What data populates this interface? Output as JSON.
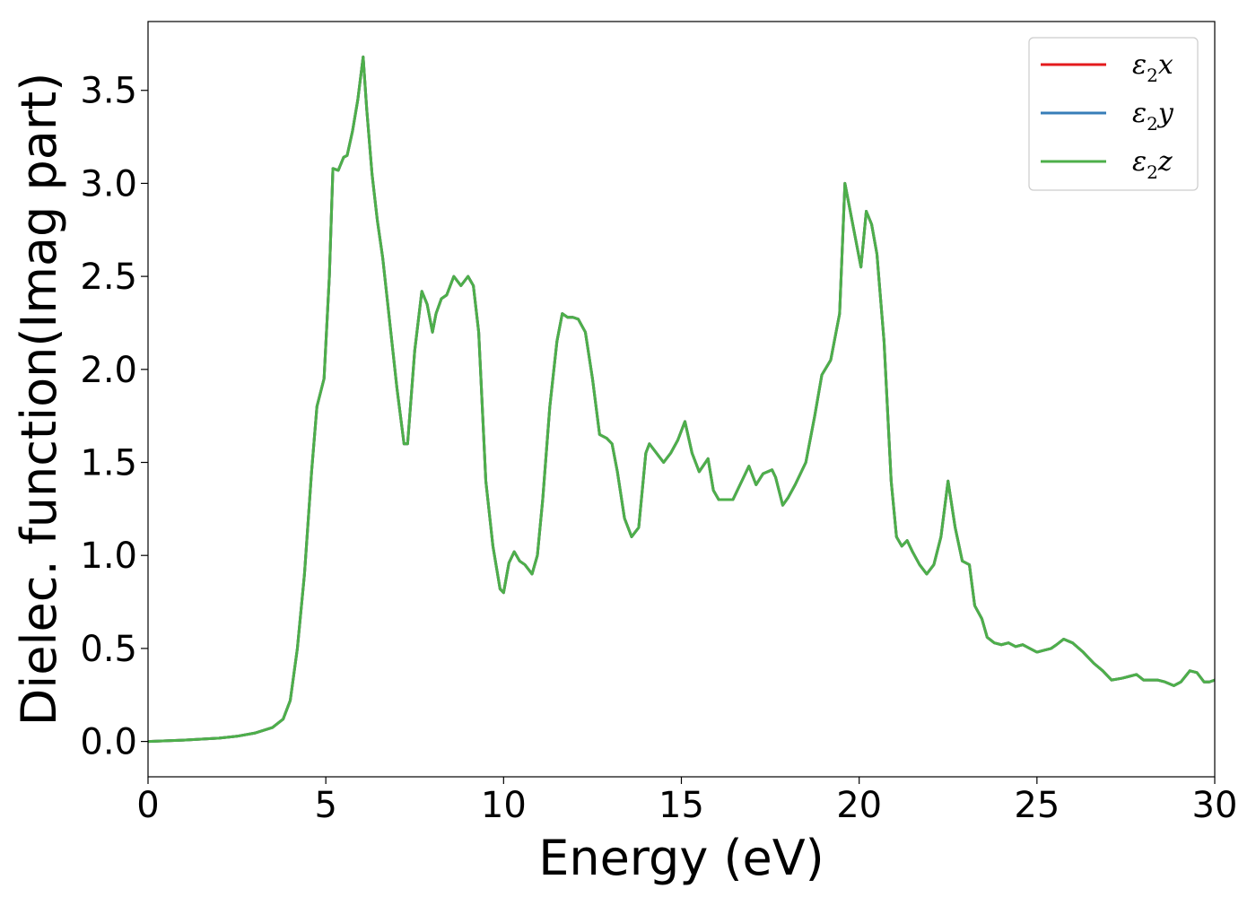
{
  "chart_data": {
    "type": "line",
    "title": "",
    "xlabel": "Energy (eV)",
    "ylabel": "Dielec. function(Imag part)",
    "xlim": [
      0,
      30
    ],
    "ylim": [
      -0.19,
      3.87
    ],
    "xticks": [
      0,
      5,
      10,
      15,
      20,
      25,
      30
    ],
    "xtick_labels": [
      "0",
      "5",
      "10",
      "15",
      "20",
      "25",
      "30"
    ],
    "yticks": [
      0.0,
      0.5,
      1.0,
      1.5,
      2.0,
      2.5,
      3.0,
      3.5
    ],
    "ytick_labels": [
      "0.0",
      "0.5",
      "1.0",
      "1.5",
      "2.0",
      "2.5",
      "3.0",
      "3.5"
    ],
    "grid": false,
    "legend_position": "top-right",
    "series": [
      {
        "name": "ε₂x",
        "color": "#e41a1c",
        "legend": {
          "base": "ε",
          "sub": "2",
          "var": "x"
        }
      },
      {
        "name": "ε₂y",
        "color": "#377eb8",
        "legend": {
          "base": "ε",
          "sub": "2",
          "var": "y"
        }
      },
      {
        "name": "ε₂z",
        "color": "#4daf4a",
        "legend": {
          "base": "ε",
          "sub": "2",
          "var": "z"
        }
      }
    ],
    "x": [
      0,
      1,
      2,
      2.5,
      3,
      3.5,
      3.8,
      4.0,
      4.2,
      4.4,
      4.6,
      4.75,
      4.95,
      5.1,
      5.2,
      5.35,
      5.5,
      5.6,
      5.75,
      5.9,
      6.05,
      6.15,
      6.3,
      6.45,
      6.6,
      6.8,
      7.0,
      7.2,
      7.3,
      7.5,
      7.7,
      7.85,
      8.0,
      8.1,
      8.25,
      8.4,
      8.6,
      8.8,
      9.0,
      9.15,
      9.3,
      9.5,
      9.7,
      9.9,
      10.0,
      10.15,
      10.3,
      10.45,
      10.6,
      10.8,
      10.95,
      11.1,
      11.3,
      11.5,
      11.65,
      11.8,
      11.95,
      12.1,
      12.3,
      12.5,
      12.7,
      12.9,
      13.05,
      13.2,
      13.4,
      13.6,
      13.8,
      14.0,
      14.1,
      14.3,
      14.5,
      14.7,
      14.9,
      15.1,
      15.3,
      15.5,
      15.75,
      15.9,
      16.05,
      16.2,
      16.45,
      16.7,
      16.9,
      17.1,
      17.3,
      17.55,
      17.65,
      17.85,
      18.0,
      18.2,
      18.5,
      18.75,
      18.95,
      19.2,
      19.45,
      19.6,
      19.85,
      20.05,
      20.2,
      20.35,
      20.5,
      20.7,
      20.9,
      21.05,
      21.2,
      21.35,
      21.5,
      21.7,
      21.9,
      22.1,
      22.3,
      22.5,
      22.7,
      22.9,
      23.1,
      23.25,
      23.45,
      23.6,
      23.8,
      24.0,
      24.2,
      24.4,
      24.6,
      24.8,
      25.0,
      25.2,
      25.4,
      25.55,
      25.75,
      26.0,
      26.3,
      26.6,
      26.85,
      27.1,
      27.4,
      27.6,
      27.8,
      28.0,
      28.2,
      28.4,
      28.6,
      28.85,
      29.05,
      29.3,
      29.5,
      29.7,
      29.85,
      30.0
    ],
    "y": [
      0.0,
      0.007,
      0.018,
      0.028,
      0.045,
      0.075,
      0.12,
      0.22,
      0.5,
      0.9,
      1.45,
      1.8,
      1.95,
      2.5,
      3.08,
      3.07,
      3.14,
      3.15,
      3.28,
      3.45,
      3.68,
      3.4,
      3.05,
      2.8,
      2.6,
      2.25,
      1.9,
      1.6,
      1.6,
      2.1,
      2.42,
      2.35,
      2.2,
      2.3,
      2.38,
      2.4,
      2.5,
      2.45,
      2.5,
      2.45,
      2.2,
      1.4,
      1.05,
      0.82,
      0.8,
      0.96,
      1.02,
      0.97,
      0.95,
      0.9,
      1.0,
      1.3,
      1.8,
      2.15,
      2.3,
      2.28,
      2.28,
      2.27,
      2.2,
      1.95,
      1.65,
      1.63,
      1.6,
      1.45,
      1.2,
      1.1,
      1.15,
      1.55,
      1.6,
      1.55,
      1.5,
      1.55,
      1.62,
      1.72,
      1.55,
      1.45,
      1.52,
      1.35,
      1.3,
      1.3,
      1.3,
      1.4,
      1.48,
      1.38,
      1.44,
      1.46,
      1.42,
      1.27,
      1.31,
      1.38,
      1.5,
      1.75,
      1.97,
      2.05,
      2.3,
      3.0,
      2.75,
      2.55,
      2.85,
      2.78,
      2.62,
      2.15,
      1.4,
      1.1,
      1.05,
      1.08,
      1.02,
      0.95,
      0.9,
      0.95,
      1.1,
      1.4,
      1.15,
      0.97,
      0.95,
      0.73,
      0.66,
      0.56,
      0.53,
      0.52,
      0.53,
      0.51,
      0.52,
      0.5,
      0.48,
      0.49,
      0.5,
      0.52,
      0.55,
      0.53,
      0.48,
      0.42,
      0.38,
      0.33,
      0.34,
      0.35,
      0.36,
      0.33,
      0.33,
      0.33,
      0.32,
      0.3,
      0.32,
      0.38,
      0.37,
      0.32,
      0.32,
      0.33
    ]
  }
}
